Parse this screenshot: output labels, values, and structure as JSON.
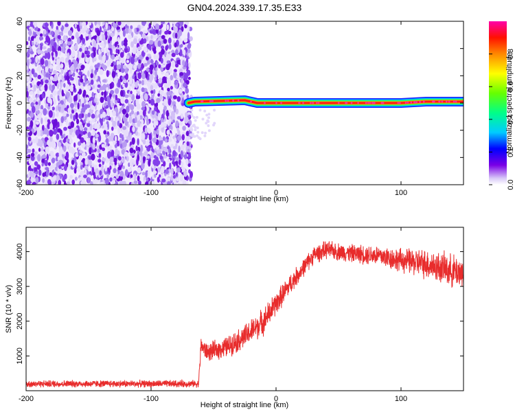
{
  "title": "GN04.2024.339.17.35.E33",
  "chart_data": [
    {
      "type": "heatmap",
      "xlabel": "Height of straight line (km)",
      "ylabel": "Frequency (Hz)",
      "xlim": [
        -200,
        150
      ],
      "ylim": [
        -60,
        60
      ],
      "xticks": [
        -200,
        -100,
        0,
        100
      ],
      "yticks": [
        -60,
        -40,
        -20,
        0,
        20,
        40,
        60
      ],
      "colorbar": {
        "label": "Normalized spectral amplitude",
        "range": [
          0,
          1
        ],
        "ticks": [
          0.0,
          0.2,
          0.4,
          0.6,
          0.8
        ]
      },
      "noise_region": {
        "x_range": [
          -200,
          -70
        ],
        "amplitude_range": [
          0.1,
          0.5
        ]
      },
      "ridge": [
        {
          "x": -70,
          "y": 0
        },
        {
          "x": -65,
          "y": 1
        },
        {
          "x": -25,
          "y": 2
        },
        {
          "x": -20,
          "y": 1
        },
        {
          "x": -15,
          "y": 0
        },
        {
          "x": 0,
          "y": 0
        },
        {
          "x": 100,
          "y": 0
        },
        {
          "x": 120,
          "y": 1
        },
        {
          "x": 150,
          "y": 1
        }
      ]
    },
    {
      "type": "line",
      "xlabel": "Height of straight line (km)",
      "ylabel": "SNR (10 * v/v)",
      "xlim": [
        -200,
        150
      ],
      "ylim": [
        0,
        4700
      ],
      "xticks": [
        -200,
        -100,
        0,
        100
      ],
      "yticks": [
        1000,
        2000,
        3000,
        4000
      ],
      "color": "#e82c2c",
      "series": [
        {
          "points": [
            {
              "x": -200,
              "y": 200,
              "spread": 120
            },
            {
              "x": -62,
              "y": 200,
              "spread": 120
            },
            {
              "x": -60,
              "y": 1300,
              "spread": 300
            },
            {
              "x": -55,
              "y": 1100,
              "spread": 300
            },
            {
              "x": -40,
              "y": 1250,
              "spread": 350
            },
            {
              "x": -25,
              "y": 1550,
              "spread": 400
            },
            {
              "x": -10,
              "y": 2000,
              "spread": 450
            },
            {
              "x": 0,
              "y": 2500,
              "spread": 400
            },
            {
              "x": 10,
              "y": 3000,
              "spread": 350
            },
            {
              "x": 20,
              "y": 3450,
              "spread": 300
            },
            {
              "x": 30,
              "y": 3900,
              "spread": 300
            },
            {
              "x": 40,
              "y": 4050,
              "spread": 300
            },
            {
              "x": 60,
              "y": 3950,
              "spread": 300
            },
            {
              "x": 80,
              "y": 3900,
              "spread": 350
            },
            {
              "x": 100,
              "y": 3750,
              "spread": 400
            },
            {
              "x": 120,
              "y": 3650,
              "spread": 500
            },
            {
              "x": 140,
              "y": 3450,
              "spread": 550
            },
            {
              "x": 150,
              "y": 3400,
              "spread": 550
            }
          ]
        }
      ]
    }
  ]
}
